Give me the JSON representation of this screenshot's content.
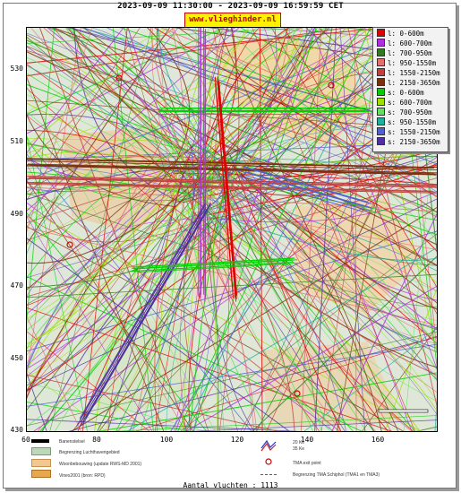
{
  "header": {
    "title": "2023-09-09 11:30:00 - 2023-09-09 16:59:59 CET",
    "brand": "www.vlieghinder.nl"
  },
  "axes": {
    "y_ticks": [
      "530",
      "510",
      "490",
      "470",
      "450",
      "430"
    ],
    "x_ticks": [
      "60",
      "80",
      "100",
      "120",
      "140",
      "160"
    ]
  },
  "legend": {
    "items": [
      {
        "label": "l: 0-600m",
        "color": "#e00000"
      },
      {
        "label": "l: 600-700m",
        "color": "#b030e0"
      },
      {
        "label": "l: 700-950m",
        "color": "#2e7d1c"
      },
      {
        "label": "l: 950-1550m",
        "color": "#e07070"
      },
      {
        "label": "l: 1550-2150m",
        "color": "#c04040"
      },
      {
        "label": "l: 2150-3650m",
        "color": "#7a3010"
      },
      {
        "label": "s: 0-600m",
        "color": "#00d000"
      },
      {
        "label": "s: 600-700m",
        "color": "#a0e000"
      },
      {
        "label": "s: 700-950m",
        "color": "#60e060"
      },
      {
        "label": "s: 950-1550m",
        "color": "#20b0a0"
      },
      {
        "label": "s: 1550-2150m",
        "color": "#5060d0"
      },
      {
        "label": "s: 2150-3650m",
        "color": "#5030a0"
      }
    ]
  },
  "map_key": {
    "runway": "Banenstelsel",
    "airport_boundary": "Begrenzing Luchthavengebied",
    "housing": "Woonbebouwing (update RWS-MD 2001)",
    "vinex": "Vinex2001 (bron: RPD)",
    "noise_20": "20 Ke",
    "noise_35": "35 Ke",
    "tma_exit": "TMA exit point",
    "tma_boundary": "Begrenzing TMA Schiphol  (TMA1 en TMA3)"
  },
  "footer": {
    "flights": "Aantal vluchten : 1113"
  },
  "colors": {
    "map_background": "#dfe8d8",
    "urban": "#f0d8a8",
    "brand_bg": "#fff200"
  }
}
